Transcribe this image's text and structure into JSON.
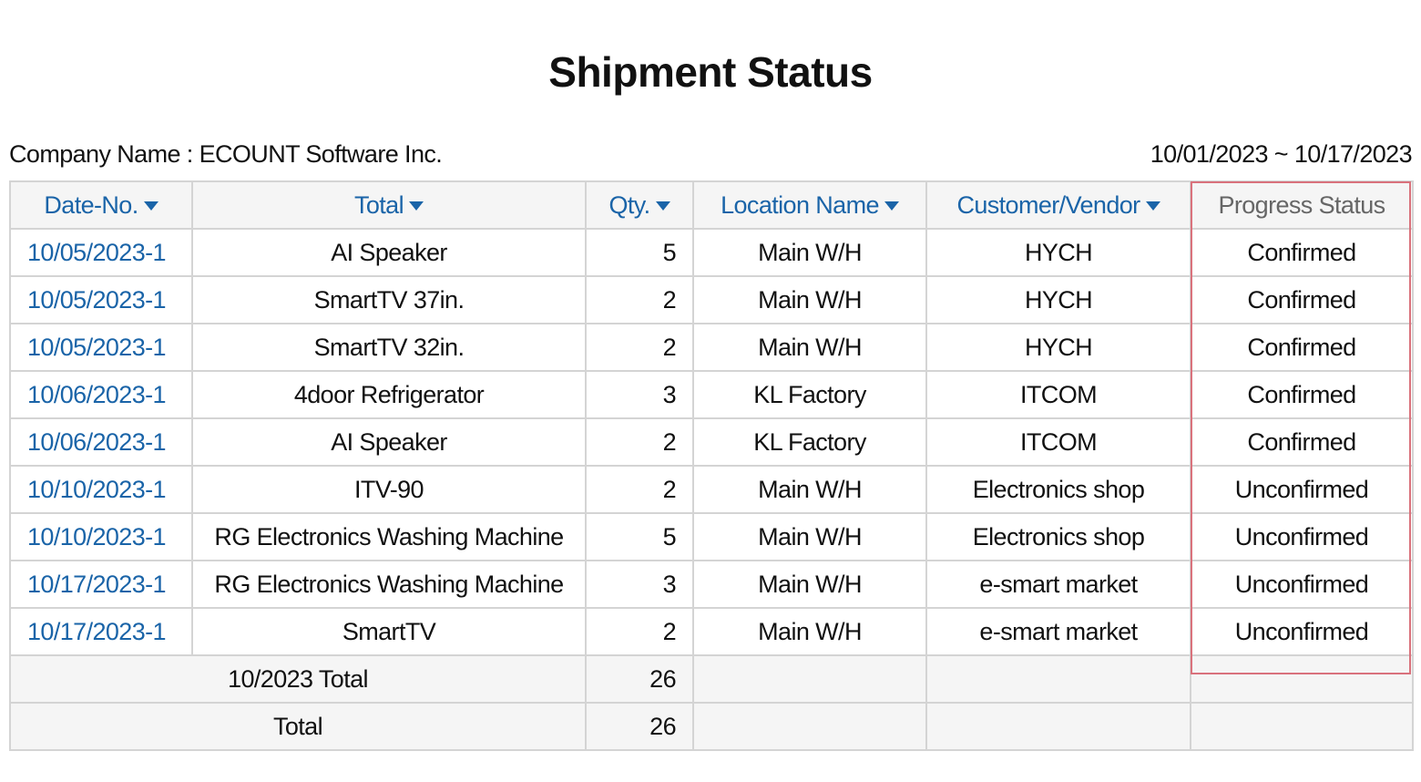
{
  "title": "Shipment Status",
  "company": "Company Name : ECOUNT Software Inc.",
  "period": "10/01/2023 ~ 10/17/2023",
  "highlight_color": "#d9727c",
  "accent_color": "#1a64a8",
  "columns": [
    {
      "label": "Date-No.",
      "sortable": true
    },
    {
      "label": "Total",
      "sortable": true
    },
    {
      "label": "Qty.",
      "sortable": true
    },
    {
      "label": "Location Name",
      "sortable": true
    },
    {
      "label": "Customer/Vendor",
      "sortable": true
    },
    {
      "label": "Progress Status",
      "sortable": false
    }
  ],
  "rows": [
    {
      "date_no": "10/05/2023-1",
      "item": "AI Speaker",
      "qty": "5",
      "location": "Main W/H",
      "customer": "HYCH",
      "status": "Confirmed"
    },
    {
      "date_no": "10/05/2023-1",
      "item": "SmartTV 37in.",
      "qty": "2",
      "location": "Main W/H",
      "customer": "HYCH",
      "status": "Confirmed"
    },
    {
      "date_no": "10/05/2023-1",
      "item": "SmartTV 32in.",
      "qty": "2",
      "location": "Main W/H",
      "customer": "HYCH",
      "status": "Confirmed"
    },
    {
      "date_no": "10/06/2023-1",
      "item": "4door Refrigerator",
      "qty": "3",
      "location": "KL Factory",
      "customer": "ITCOM",
      "status": "Confirmed"
    },
    {
      "date_no": "10/06/2023-1",
      "item": "AI Speaker",
      "qty": "2",
      "location": "KL Factory",
      "customer": "ITCOM",
      "status": "Confirmed"
    },
    {
      "date_no": "10/10/2023-1",
      "item": "ITV-90",
      "qty": "2",
      "location": "Main W/H",
      "customer": "Electronics shop",
      "status": "Unconfirmed"
    },
    {
      "date_no": "10/10/2023-1",
      "item": "RG Electronics Washing Machine",
      "qty": "5",
      "location": "Main W/H",
      "customer": "Electronics shop",
      "status": "Unconfirmed"
    },
    {
      "date_no": "10/17/2023-1",
      "item": "RG Electronics Washing Machine",
      "qty": "3",
      "location": "Main W/H",
      "customer": "e-smart market",
      "status": "Unconfirmed"
    },
    {
      "date_no": "10/17/2023-1",
      "item": "SmartTV",
      "qty": "2",
      "location": "Main W/H",
      "customer": "e-smart market",
      "status": "Unconfirmed"
    }
  ],
  "subtotal": {
    "label": "10/2023 Total",
    "qty": "26"
  },
  "total": {
    "label": "Total",
    "qty": "26"
  }
}
